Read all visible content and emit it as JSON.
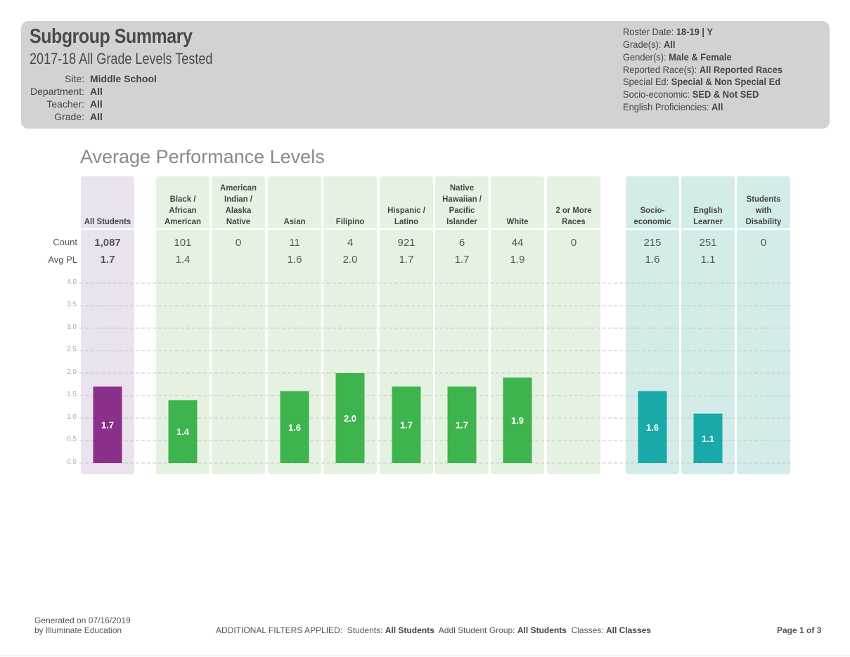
{
  "header": {
    "title": "Subgroup Summary",
    "subtitle": "2017-18  All Grade Levels Tested",
    "left_fields": [
      {
        "label": "Site:",
        "value": "Middle School"
      },
      {
        "label": "Department:",
        "value": "All"
      },
      {
        "label": "Teacher:",
        "value": "All"
      },
      {
        "label": "Grade:",
        "value": "All"
      }
    ],
    "right_fields": [
      {
        "label": "Roster Date:",
        "value": "18-19 | Y"
      },
      {
        "label": "Grade(s):",
        "value": "All"
      },
      {
        "label": "Gender(s):",
        "value": "Male & Female"
      },
      {
        "label": "Reported Race(s):",
        "value": "All Reported Races"
      },
      {
        "label": "Special Ed:",
        "value": "Special & Non Special Ed"
      },
      {
        "label": "Socio-economic:",
        "value": "SED & Not SED"
      },
      {
        "label": "English Proficiencies:",
        "value": "All"
      }
    ]
  },
  "chart_data": {
    "type": "bar",
    "title": "Average Performance Levels",
    "row_labels": {
      "count": "Count",
      "avg": "Avg PL"
    },
    "ylim": [
      0,
      4
    ],
    "yticks": [
      "0.0",
      "0.5",
      "1.0",
      "1.5",
      "2.0",
      "2.5",
      "3.0",
      "3.5",
      "4.0"
    ],
    "grid": true,
    "colors": {
      "all_students": "#8a2f8a",
      "race": "#3db44e",
      "program": "#19a9a8",
      "all_students_bg": "#eae3ee",
      "race_bg": "#e6f2e1",
      "program_bg": "#d3ecea"
    },
    "categories": [
      {
        "label": "All Students",
        "group": "all_students",
        "count": "1,087",
        "avg_text": "1.7",
        "value": 1.7
      },
      {
        "label": "Black /\nAfrican\nAmerican",
        "group": "race",
        "count": "101",
        "avg_text": "1.4",
        "value": 1.4
      },
      {
        "label": "American\nIndian /\nAlaska\nNative",
        "group": "race",
        "count": "0",
        "avg_text": "",
        "value": null
      },
      {
        "label": "Asian",
        "group": "race",
        "count": "11",
        "avg_text": "1.6",
        "value": 1.6
      },
      {
        "label": "Filipino",
        "group": "race",
        "count": "4",
        "avg_text": "2.0",
        "value": 2.0
      },
      {
        "label": "Hispanic /\nLatino",
        "group": "race",
        "count": "921",
        "avg_text": "1.7",
        "value": 1.7
      },
      {
        "label": "Native\nHawaiian /\nPacific\nIslander",
        "group": "race",
        "count": "6",
        "avg_text": "1.7",
        "value": 1.7
      },
      {
        "label": "White",
        "group": "race",
        "count": "44",
        "avg_text": "1.9",
        "value": 1.9
      },
      {
        "label": "2 or More\nRaces",
        "group": "race",
        "count": "0",
        "avg_text": "",
        "value": null
      },
      {
        "label": "Socio-\neconomic",
        "group": "program",
        "count": "215",
        "avg_text": "1.6",
        "value": 1.6
      },
      {
        "label": "English\nLearner",
        "group": "program",
        "count": "251",
        "avg_text": "1.1",
        "value": 1.1
      },
      {
        "label": "Students\nwith\nDisability",
        "group": "program",
        "count": "0",
        "avg_text": "",
        "value": null
      }
    ]
  },
  "footer": {
    "generated_line1": "Generated on 07/16/2019",
    "generated_line2": "by Illuminate Education",
    "filters_label": "ADDITIONAL FILTERS APPLIED:",
    "students_label": "Students:",
    "students_value": "All Students",
    "group_label": "Addl Student Group:",
    "group_value": "All Students",
    "classes_label": "Classes:",
    "classes_value": "All Classes",
    "page": "Page 1 of 3"
  }
}
